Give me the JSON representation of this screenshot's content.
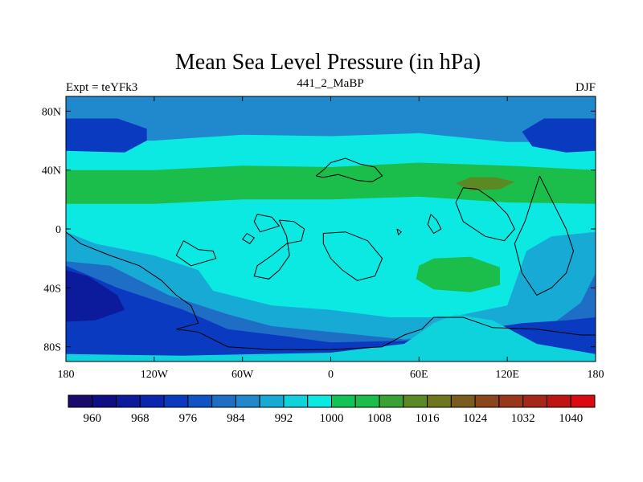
{
  "chart_data": {
    "type": "heatmap",
    "title": "Mean Sea Level Pressure (in hPa)",
    "left_label": "Expt = teYFk3",
    "center_label": "441_2_MaBP",
    "right_label": "DJF",
    "x_range": [
      -180,
      180
    ],
    "y_range": [
      -90,
      90
    ],
    "x_ticks": [
      {
        "value": -180,
        "label": "180"
      },
      {
        "value": -120,
        "label": "120W"
      },
      {
        "value": -60,
        "label": "60W"
      },
      {
        "value": 0,
        "label": "0"
      },
      {
        "value": 60,
        "label": "60E"
      },
      {
        "value": 120,
        "label": "120E"
      },
      {
        "value": 180,
        "label": "180"
      }
    ],
    "y_ticks": [
      {
        "value": 80,
        "label": "80N"
      },
      {
        "value": 40,
        "label": "40N"
      },
      {
        "value": 0,
        "label": "0"
      },
      {
        "value": -40,
        "label": "40S"
      },
      {
        "value": -80,
        "label": "80S"
      }
    ],
    "colorbar": {
      "boundaries": [
        956,
        960,
        964,
        968,
        972,
        976,
        980,
        984,
        988,
        992,
        996,
        1000,
        1004,
        1008,
        1012,
        1016,
        1020,
        1024,
        1028,
        1032,
        1036,
        1040,
        1044
      ],
      "labels": [
        "960",
        "968",
        "976",
        "984",
        "992",
        "1000",
        "1008",
        "1016",
        "1024",
        "1032",
        "1040"
      ],
      "colors": [
        "#1a0a6e",
        "#0f0e86",
        "#0c1a9c",
        "#0a26ae",
        "#0a3ac0",
        "#1053c4",
        "#1f6ec6",
        "#2088cc",
        "#17aad4",
        "#0ed2dc",
        "#0ce8e2",
        "#10c457",
        "#1bbd4b",
        "#38a234",
        "#5b8a25",
        "#6e7620",
        "#7a5d1e",
        "#8b461c",
        "#9a361a",
        "#a82617",
        "#c01413",
        "#da0a10"
      ]
    },
    "regions": [
      {
        "name": "background",
        "level": 996,
        "polygon": [
          [
            -180,
            90
          ],
          [
            180,
            90
          ],
          [
            180,
            -90
          ],
          [
            -180,
            -90
          ]
        ]
      },
      {
        "name": "north-polar-band",
        "level": 984,
        "polygon": [
          [
            -180,
            90
          ],
          [
            180,
            90
          ],
          [
            180,
            59
          ],
          [
            120,
            59
          ],
          [
            60,
            65
          ],
          [
            0,
            63
          ],
          [
            -60,
            64
          ],
          [
            -120,
            60
          ],
          [
            -180,
            59
          ]
        ]
      },
      {
        "name": "north-pacific-low",
        "level": 972,
        "polygon": [
          [
            -180,
            75
          ],
          [
            -145,
            75
          ],
          [
            -125,
            68
          ],
          [
            -125,
            60
          ],
          [
            -140,
            52
          ],
          [
            -180,
            53
          ]
        ]
      },
      {
        "name": "north-pacific-low-east",
        "level": 972,
        "polygon": [
          [
            180,
            75
          ],
          [
            145,
            75
          ],
          [
            130,
            66
          ],
          [
            137,
            56
          ],
          [
            160,
            52
          ],
          [
            180,
            53
          ]
        ]
      },
      {
        "name": "north-subtropical-ridge",
        "level": 1004,
        "polygon": [
          [
            -180,
            40
          ],
          [
            -120,
            40
          ],
          [
            -60,
            43
          ],
          [
            0,
            42
          ],
          [
            60,
            45
          ],
          [
            120,
            43
          ],
          [
            180,
            40
          ],
          [
            180,
            17
          ],
          [
            120,
            18
          ],
          [
            60,
            22
          ],
          [
            0,
            20
          ],
          [
            -60,
            20
          ],
          [
            -120,
            17
          ],
          [
            -180,
            17
          ]
        ]
      },
      {
        "name": "asia-high",
        "level": 1012,
        "polygon": [
          [
            85,
            31
          ],
          [
            95,
            35
          ],
          [
            112,
            35
          ],
          [
            125,
            32
          ],
          [
            115,
            27
          ],
          [
            95,
            26
          ]
        ]
      },
      {
        "name": "south-pacific-blue",
        "level": 988,
        "polygon": [
          [
            -180,
            -2
          ],
          [
            -160,
            -10
          ],
          [
            -120,
            -18
          ],
          [
            -90,
            -28
          ],
          [
            -80,
            -42
          ],
          [
            -40,
            -52
          ],
          [
            0,
            -55
          ],
          [
            40,
            -60
          ],
          [
            80,
            -60
          ],
          [
            120,
            -52
          ],
          [
            133,
            -15
          ],
          [
            150,
            -5
          ],
          [
            180,
            -2
          ],
          [
            180,
            -90
          ],
          [
            -180,
            -90
          ]
        ]
      },
      {
        "name": "indian-ocean-high",
        "level": 1004,
        "polygon": [
          [
            60,
            -25
          ],
          [
            70,
            -20
          ],
          [
            95,
            -19
          ],
          [
            115,
            -26
          ],
          [
            115,
            -38
          ],
          [
            95,
            -43
          ],
          [
            70,
            -41
          ],
          [
            58,
            -34
          ]
        ]
      },
      {
        "name": "southern-ocean-deep",
        "level": 980,
        "polygon": [
          [
            -180,
            -22
          ],
          [
            -150,
            -25
          ],
          [
            -110,
            -45
          ],
          [
            -70,
            -58
          ],
          [
            -40,
            -66
          ],
          [
            0,
            -70
          ],
          [
            50,
            -75
          ],
          [
            100,
            -70
          ],
          [
            150,
            -65
          ],
          [
            170,
            -50
          ],
          [
            180,
            -30
          ],
          [
            180,
            -90
          ],
          [
            -180,
            -90
          ]
        ]
      },
      {
        "name": "southern-ocean-low",
        "level": 972,
        "polygon": [
          [
            -180,
            -25
          ],
          [
            -145,
            -40
          ],
          [
            -100,
            -55
          ],
          [
            -70,
            -68
          ],
          [
            -30,
            -73
          ],
          [
            0,
            -77
          ],
          [
            50,
            -76
          ],
          [
            95,
            -69
          ],
          [
            130,
            -64
          ],
          [
            160,
            -62
          ],
          [
            180,
            -60
          ],
          [
            180,
            -90
          ],
          [
            -180,
            -90
          ]
        ]
      },
      {
        "name": "pacific-low-core",
        "level": 964,
        "polygon": [
          [
            -180,
            -28
          ],
          [
            -165,
            -32
          ],
          [
            -145,
            -45
          ],
          [
            -140,
            -55
          ],
          [
            -160,
            -62
          ],
          [
            -180,
            -63
          ]
        ]
      },
      {
        "name": "antarctic-rim",
        "level": 992,
        "polygon": [
          [
            -180,
            -85
          ],
          [
            -100,
            -86
          ],
          [
            0,
            -84
          ],
          [
            50,
            -78
          ],
          [
            70,
            -64
          ],
          [
            85,
            -58
          ],
          [
            110,
            -62
          ],
          [
            140,
            -78
          ],
          [
            180,
            -85
          ],
          [
            180,
            -90
          ],
          [
            -180,
            -90
          ]
        ]
      }
    ],
    "coastlines": [
      [
        [
          -10,
          36
        ],
        [
          -5,
          40
        ],
        [
          0,
          45
        ],
        [
          10,
          48
        ],
        [
          20,
          44
        ],
        [
          30,
          42
        ],
        [
          35,
          36
        ],
        [
          28,
          32
        ],
        [
          18,
          33
        ],
        [
          5,
          37
        ],
        [
          -5,
          35
        ],
        [
          -10,
          36
        ]
      ],
      [
        [
          -35,
          6
        ],
        [
          -25,
          5
        ],
        [
          -18,
          0
        ],
        [
          -20,
          -8
        ],
        [
          -30,
          -10
        ],
        [
          -40,
          -18
        ],
        [
          -50,
          -25
        ],
        [
          -52,
          -32
        ],
        [
          -42,
          -34
        ],
        [
          -35,
          -28
        ],
        [
          -28,
          -18
        ],
        [
          -30,
          -5
        ],
        [
          -35,
          6
        ]
      ],
      [
        [
          -5,
          -3
        ],
        [
          10,
          -2
        ],
        [
          25,
          -8
        ],
        [
          35,
          -20
        ],
        [
          30,
          -32
        ],
        [
          18,
          -35
        ],
        [
          8,
          -28
        ],
        [
          0,
          -20
        ],
        [
          -5,
          -10
        ],
        [
          -5,
          -3
        ]
      ],
      [
        [
          90,
          28
        ],
        [
          85,
          18
        ],
        [
          90,
          5
        ],
        [
          105,
          -5
        ],
        [
          118,
          -8
        ],
        [
          125,
          0
        ],
        [
          120,
          10
        ],
        [
          110,
          20
        ],
        [
          100,
          27
        ],
        [
          90,
          28
        ]
      ],
      [
        [
          142,
          36
        ],
        [
          150,
          20
        ],
        [
          160,
          0
        ],
        [
          165,
          -15
        ],
        [
          160,
          -30
        ],
        [
          150,
          -40
        ],
        [
          140,
          -45
        ],
        [
          130,
          -30
        ],
        [
          125,
          -10
        ],
        [
          132,
          5
        ],
        [
          142,
          36
        ]
      ],
      [
        [
          -180,
          -2
        ],
        [
          -170,
          -10
        ],
        [
          -150,
          -18
        ],
        [
          -130,
          -25
        ],
        [
          -115,
          -35
        ],
        [
          -105,
          -45
        ],
        [
          -95,
          -52
        ],
        [
          -90,
          -64
        ],
        [
          -105,
          -68
        ],
        [
          -90,
          -70
        ],
        [
          -70,
          -80
        ],
        [
          -40,
          -82
        ],
        [
          0,
          -82
        ],
        [
          35,
          -80
        ],
        [
          50,
          -72
        ],
        [
          62,
          -68
        ],
        [
          70,
          -60
        ],
        [
          90,
          -60
        ],
        [
          110,
          -67
        ],
        [
          140,
          -68
        ],
        [
          170,
          -72
        ],
        [
          180,
          -72
        ]
      ],
      [
        [
          -100,
          -8
        ],
        [
          -90,
          -14
        ],
        [
          -80,
          -15
        ],
        [
          -78,
          -20
        ],
        [
          -95,
          -25
        ],
        [
          -105,
          -18
        ],
        [
          -100,
          -8
        ]
      ],
      [
        [
          -50,
          10
        ],
        [
          -40,
          8
        ],
        [
          -35,
          2
        ],
        [
          -48,
          -2
        ],
        [
          -52,
          5
        ],
        [
          -50,
          10
        ]
      ],
      [
        [
          -57,
          -3
        ],
        [
          -52,
          -6
        ],
        [
          -55,
          -10
        ],
        [
          -60,
          -7
        ],
        [
          -57,
          -3
        ]
      ],
      [
        [
          68,
          10
        ],
        [
          72,
          6
        ],
        [
          75,
          0
        ],
        [
          70,
          -3
        ],
        [
          66,
          3
        ],
        [
          68,
          10
        ]
      ],
      [
        [
          45,
          0
        ],
        [
          48,
          -2
        ],
        [
          46,
          -4
        ],
        [
          45,
          0
        ]
      ]
    ]
  }
}
